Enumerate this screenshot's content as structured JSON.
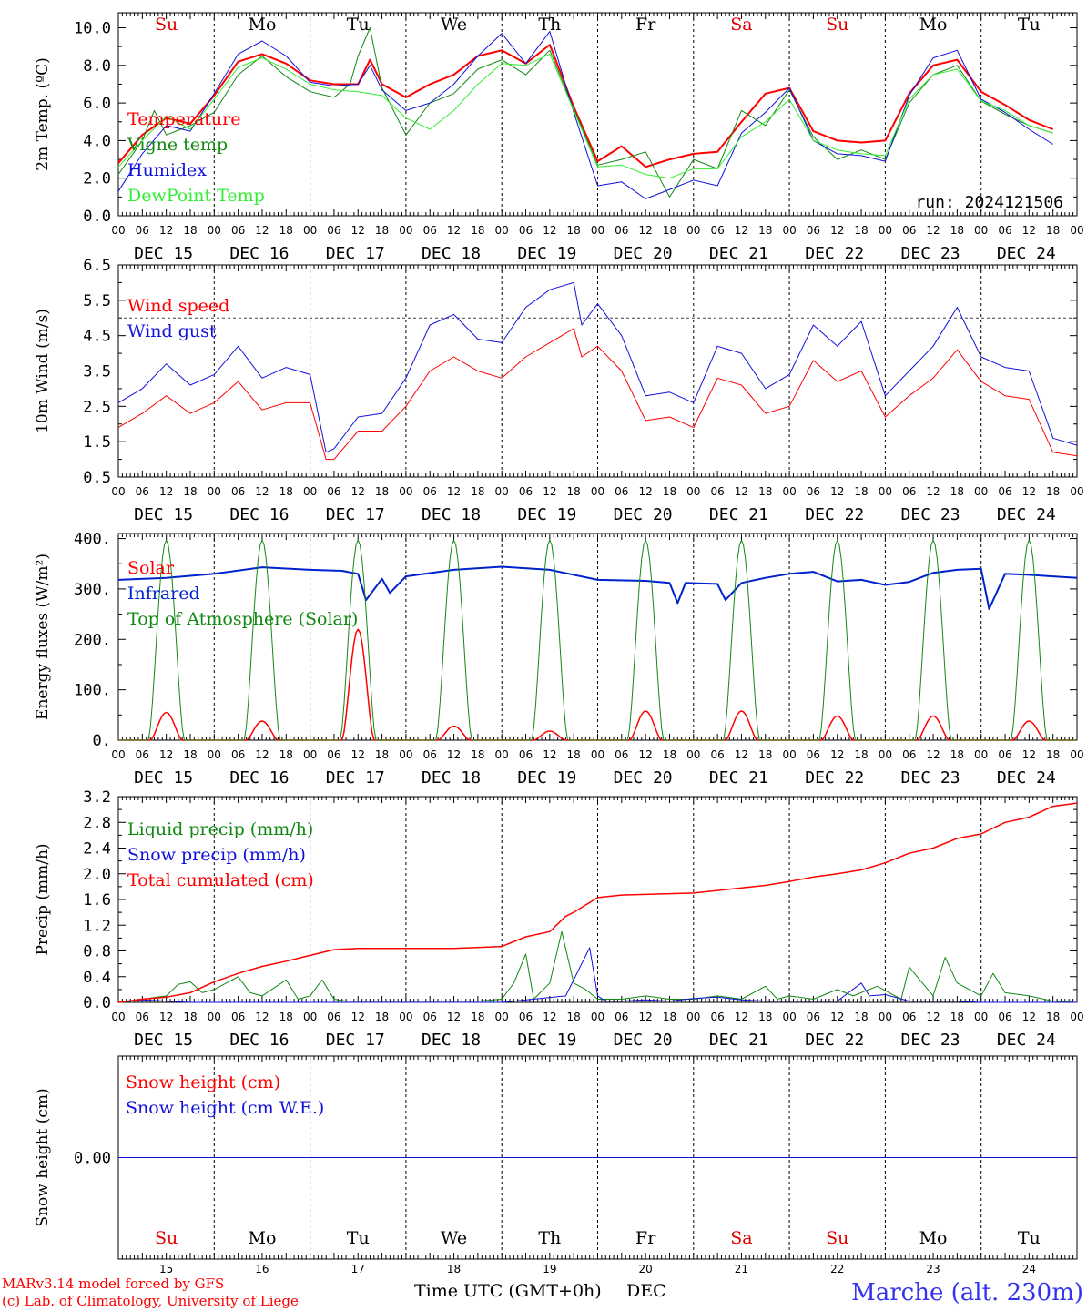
{
  "hours": [
    "00",
    "06",
    "12",
    "18"
  ],
  "days": [
    "DEC 15",
    "DEC 16",
    "DEC 17",
    "DEC 18",
    "DEC 19",
    "DEC 20",
    "DEC 21",
    "DEC 22",
    "DEC 23",
    "DEC 24"
  ],
  "day_numbers": [
    "15",
    "16",
    "17",
    "18",
    "19",
    "20",
    "21",
    "22",
    "23",
    "24"
  ],
  "weekdays": [
    "Su",
    "Mo",
    "Tu",
    "We",
    "Th",
    "Fr",
    "Sa",
    "Su",
    "Mo",
    "Tu"
  ],
  "weekday_colors": [
    "#e00000",
    "#000000",
    "#000000",
    "#000000",
    "#000000",
    "#000000",
    "#e00000",
    "#e00000",
    "#000000",
    "#000000"
  ],
  "footer": {
    "model": "MARv3.14 model forced by GFS",
    "copyright": "(c) Lab. of Climatology, University of Liege",
    "axis_title": "Time UTC (GMT+0h)",
    "month": "DEC",
    "station": "Marche (alt. 230m)"
  },
  "colors": {
    "red": "#ff0000",
    "dkgreen": "#118811",
    "blue": "#1111dd",
    "ltgreen": "#33ee33",
    "navy": "#0022cc"
  },
  "chart_data": [
    {
      "id": "temp",
      "type": "line",
      "ylabel": "2m Temp. (ºC)",
      "ylim": [
        0,
        10.8
      ],
      "yticks": [
        0,
        2,
        4,
        6,
        8,
        10
      ],
      "ytick_labels": [
        "0.0",
        "2.0",
        "4.0",
        "6.0",
        "8.0",
        "10.0"
      ],
      "run_label": "run: 2024121506",
      "series": [
        {
          "name": "Temperature",
          "color": "#ff0000",
          "width": 2,
          "x": [
            0,
            6,
            12,
            18,
            24,
            30,
            36,
            42,
            48,
            54,
            60,
            63,
            66,
            72,
            78,
            84,
            90,
            96,
            102,
            108,
            114,
            120,
            126,
            132,
            138,
            144,
            150,
            156,
            162,
            168,
            174,
            180,
            186,
            192,
            198,
            204,
            210,
            216,
            222,
            228,
            234
          ],
          "values": [
            2.8,
            4.3,
            5.2,
            4.9,
            6.4,
            8.2,
            8.6,
            8.1,
            7.2,
            7.0,
            7.0,
            8.3,
            7.0,
            6.3,
            7.0,
            7.5,
            8.5,
            8.8,
            8.1,
            9.1,
            5.8,
            2.9,
            3.7,
            2.6,
            3.0,
            3.3,
            3.4,
            5.0,
            6.5,
            6.8,
            4.5,
            4.0,
            3.9,
            4.0,
            6.5,
            8.0,
            8.3,
            6.6,
            5.9,
            5.1,
            4.6
          ]
        },
        {
          "name": "Vigne temp",
          "color": "#118811",
          "width": 1,
          "x": [
            0,
            6,
            9,
            12,
            18,
            24,
            30,
            36,
            42,
            48,
            54,
            58,
            60,
            63,
            66,
            72,
            78,
            84,
            90,
            96,
            102,
            108,
            114,
            120,
            126,
            132,
            138,
            144,
            150,
            156,
            162,
            168,
            174,
            180,
            186,
            192,
            198,
            204,
            210,
            216,
            222,
            228,
            234
          ],
          "values": [
            2.2,
            4.0,
            5.6,
            4.3,
            4.8,
            5.5,
            7.5,
            8.5,
            7.4,
            6.6,
            6.3,
            7.0,
            8.5,
            10.0,
            6.8,
            4.3,
            6.0,
            6.5,
            7.8,
            8.3,
            7.5,
            8.8,
            5.7,
            2.7,
            3.0,
            3.4,
            1.0,
            3.0,
            2.5,
            5.6,
            4.8,
            6.7,
            4.2,
            3.0,
            3.5,
            3.0,
            6.0,
            7.5,
            8.0,
            6.1,
            5.4,
            4.8,
            4.4
          ]
        },
        {
          "name": "Humidex",
          "color": "#1111dd",
          "width": 1,
          "x": [
            0,
            6,
            12,
            18,
            24,
            30,
            36,
            42,
            48,
            54,
            60,
            63,
            66,
            72,
            78,
            84,
            90,
            96,
            102,
            108,
            114,
            120,
            126,
            132,
            138,
            144,
            150,
            156,
            162,
            168,
            174,
            180,
            186,
            192,
            198,
            204,
            210,
            216,
            222,
            228,
            234
          ],
          "values": [
            1.3,
            3.3,
            4.8,
            4.5,
            6.5,
            8.6,
            9.3,
            8.5,
            7.1,
            6.9,
            7.0,
            8.0,
            6.7,
            5.6,
            6.0,
            7.0,
            8.5,
            9.7,
            8.1,
            9.8,
            5.5,
            1.6,
            1.8,
            0.9,
            1.4,
            1.9,
            1.6,
            4.4,
            5.5,
            6.8,
            4.0,
            3.3,
            3.2,
            2.9,
            6.4,
            8.4,
            8.8,
            6.2,
            5.5,
            4.6,
            3.8
          ]
        },
        {
          "name": "DewPoint Temp",
          "color": "#33ee33",
          "width": 1,
          "x": [
            0,
            6,
            12,
            18,
            24,
            30,
            36,
            42,
            48,
            54,
            60,
            66,
            72,
            78,
            84,
            90,
            96,
            102,
            108,
            114,
            120,
            126,
            132,
            138,
            144,
            150,
            156,
            162,
            168,
            174,
            180,
            186,
            192,
            198,
            204,
            210,
            216,
            222,
            228,
            234
          ],
          "values": [
            2.6,
            4.0,
            5.3,
            4.6,
            6.2,
            7.9,
            8.4,
            7.8,
            7.0,
            6.7,
            6.6,
            6.4,
            5.2,
            4.6,
            5.6,
            7.0,
            8.1,
            8.0,
            8.6,
            5.6,
            2.6,
            2.7,
            2.2,
            2.0,
            2.5,
            2.5,
            4.2,
            5.0,
            6.2,
            4.0,
            3.5,
            3.3,
            3.2,
            6.2,
            7.5,
            7.8,
            6.1,
            5.6,
            4.8,
            4.4
          ]
        }
      ]
    },
    {
      "id": "wind",
      "type": "line",
      "ylabel": "10m Wind (m/s)",
      "ylim": [
        0.5,
        6.5
      ],
      "yticks": [
        0.5,
        1.5,
        2.5,
        3.5,
        4.5,
        5.5,
        6.5
      ],
      "ytick_labels": [
        "0.5",
        "1.5",
        "2.5",
        "3.5",
        "4.5",
        "5.5",
        "6.5"
      ],
      "reference_line": 5.0,
      "series": [
        {
          "name": "Wind speed",
          "color": "#ff0000",
          "width": 1,
          "x": [
            0,
            6,
            12,
            18,
            24,
            30,
            36,
            42,
            48,
            52,
            54,
            60,
            66,
            72,
            78,
            84,
            90,
            96,
            102,
            108,
            114,
            116,
            120,
            126,
            132,
            138,
            144,
            150,
            156,
            162,
            168,
            174,
            180,
            186,
            192,
            198,
            204,
            210,
            216,
            222,
            228,
            234,
            240
          ],
          "values": [
            1.9,
            2.3,
            2.8,
            2.3,
            2.6,
            3.2,
            2.4,
            2.6,
            2.6,
            1.0,
            1.0,
            1.8,
            1.8,
            2.5,
            3.5,
            3.9,
            3.5,
            3.3,
            3.9,
            4.3,
            4.7,
            3.9,
            4.2,
            3.5,
            2.1,
            2.2,
            1.9,
            3.3,
            3.1,
            2.3,
            2.5,
            3.8,
            3.2,
            3.5,
            2.2,
            2.8,
            3.3,
            4.1,
            3.2,
            2.8,
            2.7,
            1.2,
            1.1
          ]
        },
        {
          "name": "Wind gust",
          "color": "#1111dd",
          "width": 1,
          "x": [
            0,
            6,
            12,
            18,
            24,
            30,
            36,
            42,
            48,
            52,
            54,
            60,
            66,
            72,
            78,
            84,
            90,
            96,
            102,
            108,
            114,
            116,
            120,
            126,
            132,
            138,
            144,
            150,
            156,
            162,
            168,
            174,
            180,
            186,
            192,
            198,
            204,
            210,
            216,
            222,
            228,
            234,
            240
          ],
          "values": [
            2.6,
            3.0,
            3.7,
            3.1,
            3.4,
            4.2,
            3.3,
            3.6,
            3.4,
            1.2,
            1.3,
            2.2,
            2.3,
            3.3,
            4.8,
            5.1,
            4.4,
            4.3,
            5.3,
            5.8,
            6.0,
            4.8,
            5.4,
            4.5,
            2.8,
            2.9,
            2.6,
            4.2,
            4.0,
            3.0,
            3.4,
            4.8,
            4.2,
            4.9,
            2.8,
            3.5,
            4.2,
            5.3,
            3.9,
            3.6,
            3.5,
            1.6,
            1.4
          ]
        }
      ]
    },
    {
      "id": "energy",
      "type": "line",
      "ylabel": "Energy fluxes (W/m²)",
      "ylim": [
        0,
        410
      ],
      "yticks": [
        0,
        100,
        200,
        300,
        400
      ],
      "ytick_labels": [
        "0.",
        "100.",
        "200.",
        "300.",
        "400."
      ],
      "series": [
        {
          "name": "Solar",
          "color": "#ff0000",
          "width": 1.5,
          "daily_peaks": [
            55,
            38,
            220,
            28,
            18,
            58,
            58,
            48,
            48,
            38
          ],
          "rise": 8,
          "set": 16
        },
        {
          "name": "Infrared",
          "color": "#0022cc",
          "width": 2,
          "x": [
            0,
            12,
            24,
            36,
            48,
            56,
            60,
            62,
            66,
            68,
            72,
            84,
            96,
            108,
            120,
            132,
            138,
            140,
            142,
            150,
            152,
            156,
            162,
            168,
            174,
            180,
            186,
            192,
            198,
            204,
            210,
            216,
            218,
            222,
            228,
            234,
            240
          ],
          "values": [
            318,
            322,
            330,
            343,
            338,
            336,
            330,
            278,
            320,
            292,
            325,
            338,
            344,
            338,
            318,
            316,
            312,
            272,
            312,
            310,
            278,
            312,
            322,
            330,
            334,
            315,
            318,
            308,
            314,
            332,
            338,
            340,
            260,
            330,
            328,
            325,
            322
          ]
        },
        {
          "name": "Top of Atmosphere (Solar)",
          "color": "#118811",
          "width": 1,
          "daily_peaks": [
            397,
            397,
            397,
            397,
            397,
            397,
            397,
            397,
            397,
            397
          ],
          "rise": 7.5,
          "set": 16.5
        }
      ]
    },
    {
      "id": "precip",
      "type": "line",
      "ylabel": "Precip (mm/h)",
      "ylim": [
        0,
        3.2
      ],
      "yticks": [
        0,
        0.4,
        0.8,
        1.2,
        1.6,
        2.0,
        2.4,
        2.8,
        3.2
      ],
      "ytick_labels": [
        "0.0",
        "0.4",
        "0.8",
        "1.2",
        "1.6",
        "2.0",
        "2.4",
        "2.8",
        "3.2"
      ],
      "series": [
        {
          "name": "Liquid precip (mm/h)",
          "color": "#118811",
          "width": 1,
          "x": [
            0,
            6,
            12,
            15,
            18,
            21,
            24,
            30,
            33,
            36,
            42,
            45,
            48,
            51,
            54,
            57,
            60,
            66,
            72,
            78,
            84,
            90,
            96,
            99,
            102,
            104,
            108,
            111,
            114,
            117,
            120,
            126,
            132,
            138,
            144,
            150,
            156,
            162,
            165,
            168,
            174,
            180,
            184,
            190,
            196,
            198,
            204,
            207,
            210,
            216,
            219,
            222,
            228,
            234,
            240
          ],
          "values": [
            0,
            0.05,
            0.1,
            0.28,
            0.32,
            0.15,
            0.2,
            0.4,
            0.15,
            0.1,
            0.35,
            0.05,
            0.1,
            0.35,
            0.05,
            0.02,
            0.02,
            0.02,
            0.02,
            0.02,
            0.02,
            0.02,
            0.05,
            0.3,
            0.75,
            0.05,
            0.3,
            1.1,
            0.3,
            0.2,
            0.05,
            0.05,
            0.1,
            0.05,
            0.05,
            0.1,
            0.05,
            0.25,
            0.05,
            0.1,
            0.05,
            0.2,
            0.1,
            0.25,
            0.05,
            0.55,
            0.1,
            0.7,
            0.3,
            0.1,
            0.45,
            0.15,
            0.1,
            0.02,
            0.0
          ]
        },
        {
          "name": "Snow precip (mm/h)",
          "color": "#1111dd",
          "width": 1,
          "x": [
            0,
            6,
            12,
            18,
            24,
            96,
            112,
            118,
            120,
            122,
            126,
            132,
            138,
            144,
            150,
            156,
            162,
            180,
            186,
            188,
            192,
            198,
            204,
            210,
            216,
            240
          ],
          "values": [
            0,
            0.04,
            0.02,
            0,
            0,
            0,
            0.1,
            0.85,
            0.1,
            0.02,
            0.02,
            0.04,
            0.02,
            0.06,
            0.08,
            0.04,
            0.02,
            0.02,
            0.3,
            0.1,
            0.12,
            0.02,
            0.02,
            0.02,
            0,
            0
          ]
        },
        {
          "name": "Total cumulated (cm)",
          "color": "#ff0000",
          "width": 1.5,
          "x": [
            0,
            6,
            12,
            18,
            24,
            30,
            36,
            42,
            48,
            54,
            60,
            72,
            84,
            96,
            102,
            108,
            112,
            114,
            120,
            126,
            132,
            138,
            144,
            150,
            156,
            162,
            168,
            174,
            180,
            186,
            192,
            198,
            204,
            210,
            216,
            222,
            228,
            234,
            240
          ],
          "values": [
            0,
            0.05,
            0.08,
            0.15,
            0.32,
            0.45,
            0.56,
            0.64,
            0.73,
            0.82,
            0.84,
            0.84,
            0.84,
            0.87,
            1.02,
            1.1,
            1.34,
            1.4,
            1.63,
            1.67,
            1.68,
            1.69,
            1.7,
            1.74,
            1.78,
            1.82,
            1.88,
            1.95,
            2.0,
            2.06,
            2.17,
            2.32,
            2.4,
            2.55,
            2.62,
            2.8,
            2.88,
            3.05,
            3.1
          ]
        }
      ]
    },
    {
      "id": "snow",
      "type": "line",
      "ylabel": "Snow height (cm)",
      "ylim": [
        -1,
        1
      ],
      "yticks": [
        0
      ],
      "ytick_labels": [
        "0.00"
      ],
      "series": [
        {
          "name": "Snow height (cm)",
          "color": "#ff0000",
          "width": 1,
          "x": [
            0,
            240
          ],
          "values": [
            0,
            0
          ]
        },
        {
          "name": "Snow height (cm W.E.)",
          "color": "#1111dd",
          "width": 1,
          "x": [
            0,
            240
          ],
          "values": [
            0,
            0
          ]
        }
      ]
    }
  ]
}
